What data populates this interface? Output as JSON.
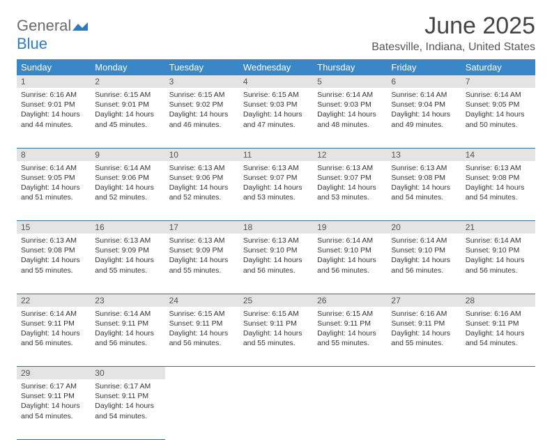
{
  "brand": {
    "word1": "General",
    "word2": "Blue"
  },
  "title": "June 2025",
  "location": "Batesville, Indiana, United States",
  "colors": {
    "header_bg": "#3a87c8",
    "header_text": "#ffffff",
    "daynum_bg": "#e4e4e4",
    "row_border": "#3a6b94",
    "brand_gray": "#6b6b6b",
    "brand_blue": "#2f7bbf"
  },
  "weekdays": [
    "Sunday",
    "Monday",
    "Tuesday",
    "Wednesday",
    "Thursday",
    "Friday",
    "Saturday"
  ],
  "weeks": [
    [
      {
        "n": "1",
        "sr": "6:16 AM",
        "ss": "9:01 PM",
        "dl": "14 hours and 44 minutes."
      },
      {
        "n": "2",
        "sr": "6:15 AM",
        "ss": "9:01 PM",
        "dl": "14 hours and 45 minutes."
      },
      {
        "n": "3",
        "sr": "6:15 AM",
        "ss": "9:02 PM",
        "dl": "14 hours and 46 minutes."
      },
      {
        "n": "4",
        "sr": "6:15 AM",
        "ss": "9:03 PM",
        "dl": "14 hours and 47 minutes."
      },
      {
        "n": "5",
        "sr": "6:14 AM",
        "ss": "9:03 PM",
        "dl": "14 hours and 48 minutes."
      },
      {
        "n": "6",
        "sr": "6:14 AM",
        "ss": "9:04 PM",
        "dl": "14 hours and 49 minutes."
      },
      {
        "n": "7",
        "sr": "6:14 AM",
        "ss": "9:05 PM",
        "dl": "14 hours and 50 minutes."
      }
    ],
    [
      {
        "n": "8",
        "sr": "6:14 AM",
        "ss": "9:05 PM",
        "dl": "14 hours and 51 minutes."
      },
      {
        "n": "9",
        "sr": "6:14 AM",
        "ss": "9:06 PM",
        "dl": "14 hours and 52 minutes."
      },
      {
        "n": "10",
        "sr": "6:13 AM",
        "ss": "9:06 PM",
        "dl": "14 hours and 52 minutes."
      },
      {
        "n": "11",
        "sr": "6:13 AM",
        "ss": "9:07 PM",
        "dl": "14 hours and 53 minutes."
      },
      {
        "n": "12",
        "sr": "6:13 AM",
        "ss": "9:07 PM",
        "dl": "14 hours and 53 minutes."
      },
      {
        "n": "13",
        "sr": "6:13 AM",
        "ss": "9:08 PM",
        "dl": "14 hours and 54 minutes."
      },
      {
        "n": "14",
        "sr": "6:13 AM",
        "ss": "9:08 PM",
        "dl": "14 hours and 54 minutes."
      }
    ],
    [
      {
        "n": "15",
        "sr": "6:13 AM",
        "ss": "9:08 PM",
        "dl": "14 hours and 55 minutes."
      },
      {
        "n": "16",
        "sr": "6:13 AM",
        "ss": "9:09 PM",
        "dl": "14 hours and 55 minutes."
      },
      {
        "n": "17",
        "sr": "6:13 AM",
        "ss": "9:09 PM",
        "dl": "14 hours and 55 minutes."
      },
      {
        "n": "18",
        "sr": "6:13 AM",
        "ss": "9:10 PM",
        "dl": "14 hours and 56 minutes."
      },
      {
        "n": "19",
        "sr": "6:14 AM",
        "ss": "9:10 PM",
        "dl": "14 hours and 56 minutes."
      },
      {
        "n": "20",
        "sr": "6:14 AM",
        "ss": "9:10 PM",
        "dl": "14 hours and 56 minutes."
      },
      {
        "n": "21",
        "sr": "6:14 AM",
        "ss": "9:10 PM",
        "dl": "14 hours and 56 minutes."
      }
    ],
    [
      {
        "n": "22",
        "sr": "6:14 AM",
        "ss": "9:11 PM",
        "dl": "14 hours and 56 minutes."
      },
      {
        "n": "23",
        "sr": "6:14 AM",
        "ss": "9:11 PM",
        "dl": "14 hours and 56 minutes."
      },
      {
        "n": "24",
        "sr": "6:15 AM",
        "ss": "9:11 PM",
        "dl": "14 hours and 56 minutes."
      },
      {
        "n": "25",
        "sr": "6:15 AM",
        "ss": "9:11 PM",
        "dl": "14 hours and 55 minutes."
      },
      {
        "n": "26",
        "sr": "6:15 AM",
        "ss": "9:11 PM",
        "dl": "14 hours and 55 minutes."
      },
      {
        "n": "27",
        "sr": "6:16 AM",
        "ss": "9:11 PM",
        "dl": "14 hours and 55 minutes."
      },
      {
        "n": "28",
        "sr": "6:16 AM",
        "ss": "9:11 PM",
        "dl": "14 hours and 54 minutes."
      }
    ],
    [
      {
        "n": "29",
        "sr": "6:17 AM",
        "ss": "9:11 PM",
        "dl": "14 hours and 54 minutes."
      },
      {
        "n": "30",
        "sr": "6:17 AM",
        "ss": "9:11 PM",
        "dl": "14 hours and 54 minutes."
      },
      null,
      null,
      null,
      null,
      null
    ]
  ],
  "labels": {
    "sunrise": "Sunrise:",
    "sunset": "Sunset:",
    "daylight": "Daylight:"
  }
}
